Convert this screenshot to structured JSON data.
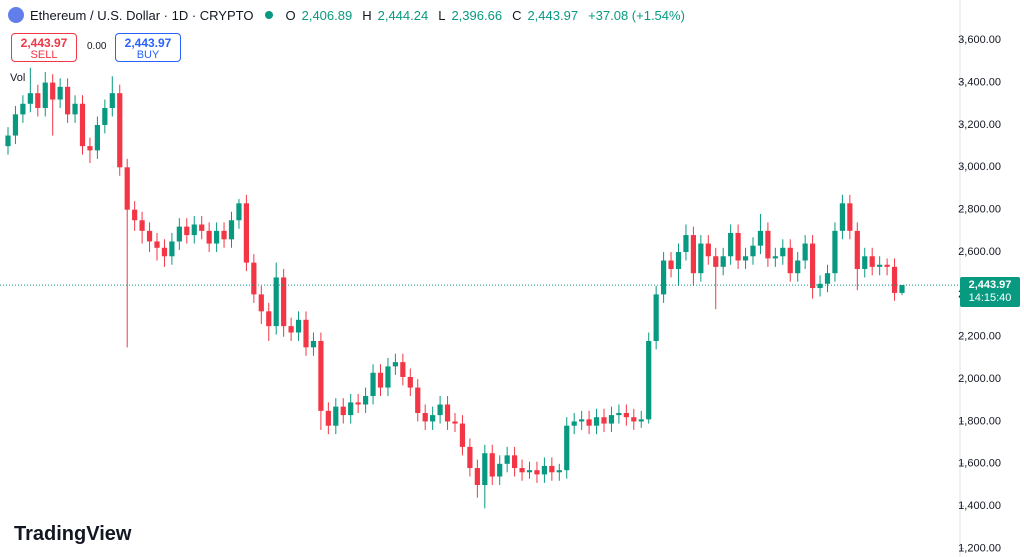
{
  "header": {
    "symbol": "Ethereum / U.S. Dollar · 1D · CRYPTO",
    "o_key": "O",
    "o": "2,406.89",
    "h_key": "H",
    "h": "2,444.24",
    "l_key": "L",
    "l": "2,396.66",
    "c_key": "C",
    "c": "2,443.97",
    "change": "+37.08 (+1.54%)"
  },
  "trade": {
    "sell_price": "2,443.97",
    "sell": "SELL",
    "spread": "0.00",
    "buy_price": "2,443.97",
    "buy": "BUY"
  },
  "volume_label": "Vol",
  "brand": "TradingView",
  "chart_data": {
    "type": "candlestick",
    "up_color": "#089981",
    "down_color": "#f23645",
    "ylim": [
      1160,
      3790
    ],
    "yticks": [
      {
        "value": 1200,
        "label": "1,200.00"
      },
      {
        "value": 1400,
        "label": "1,400.00"
      },
      {
        "value": 1600,
        "label": "1,600.00"
      },
      {
        "value": 1800,
        "label": "1,800.00"
      },
      {
        "value": 2000,
        "label": "2,000.00"
      },
      {
        "value": 2200,
        "label": "2,200.00"
      },
      {
        "value": 2400,
        "label": "2,400.00"
      },
      {
        "value": 2600,
        "label": "2,600.00"
      },
      {
        "value": 2800,
        "label": "2,800.00"
      },
      {
        "value": 3000,
        "label": "3,000.00"
      },
      {
        "value": 3200,
        "label": "3,200.00"
      },
      {
        "value": 3400,
        "label": "3,400.00"
      },
      {
        "value": 3600,
        "label": "3,600.00"
      }
    ],
    "last_price_label": "2,443.97",
    "countdown": "14:15:40",
    "open": [
      3100,
      3150,
      3250,
      3300,
      3350,
      3280,
      3400,
      3320,
      3380,
      3250,
      3300,
      3100,
      3080,
      3200,
      3280,
      3350,
      3000,
      2800,
      2750,
      2700,
      2650,
      2620,
      2580,
      2650,
      2720,
      2680,
      2730,
      2700,
      2640,
      2700,
      2660,
      2750,
      2830,
      2550,
      2400,
      2320,
      2250,
      2480,
      2250,
      2220,
      2280,
      2150,
      2180,
      1850,
      1780,
      1870,
      1830,
      1890,
      1880,
      1920,
      2030,
      1960,
      2060,
      2080,
      2010,
      1960,
      1840,
      1800,
      1830,
      1880,
      1800,
      1790,
      1680,
      1580,
      1500,
      1650,
      1540,
      1600,
      1640,
      1580,
      1560,
      1570,
      1550,
      1590,
      1560,
      1570,
      1780,
      1800,
      1810,
      1780,
      1820,
      1790,
      1830,
      1840,
      1820,
      1800,
      1810,
      2180,
      2400,
      2560,
      2520,
      2600,
      2680,
      2500,
      2640,
      2580,
      2530,
      2580,
      2690,
      2560,
      2580,
      2630,
      2700,
      2570,
      2580,
      2620,
      2500,
      2560,
      2640,
      2430,
      2450,
      2500,
      2700,
      2830,
      2700,
      2520,
      2580,
      2530,
      2540,
      2530,
      2406.89
    ],
    "high": [
      3190,
      3290,
      3340,
      3470,
      3390,
      3450,
      3440,
      3420,
      3420,
      3340,
      3340,
      3140,
      3240,
      3320,
      3430,
      3390,
      3040,
      2840,
      2790,
      2740,
      2690,
      2660,
      2690,
      2760,
      2760,
      2770,
      2770,
      2740,
      2740,
      2740,
      2790,
      2850,
      2870,
      2590,
      2440,
      2360,
      2550,
      2520,
      2290,
      2320,
      2320,
      2220,
      2220,
      1890,
      1910,
      1910,
      1930,
      1930,
      1960,
      2070,
      2070,
      2100,
      2120,
      2120,
      2050,
      2000,
      1880,
      1870,
      1920,
      1920,
      1840,
      1830,
      1720,
      1620,
      1690,
      1690,
      1640,
      1680,
      1680,
      1620,
      1610,
      1610,
      1630,
      1630,
      1600,
      1820,
      1840,
      1850,
      1850,
      1860,
      1860,
      1870,
      1880,
      1880,
      1860,
      1850,
      2220,
      2440,
      2600,
      2600,
      2640,
      2730,
      2720,
      2680,
      2680,
      2620,
      2620,
      2730,
      2730,
      2620,
      2670,
      2780,
      2740,
      2620,
      2660,
      2660,
      2600,
      2680,
      2680,
      2490,
      2540,
      2740,
      2870,
      2870,
      2740,
      2620,
      2620,
      2580,
      2570,
      2570,
      2444.24
    ],
    "low": [
      3060,
      3110,
      3210,
      3260,
      3240,
      3240,
      3150,
      3280,
      3210,
      3210,
      3060,
      3020,
      3040,
      3160,
      3240,
      2960,
      2150,
      2700,
      2640,
      2600,
      2560,
      2530,
      2540,
      2610,
      2640,
      2640,
      2660,
      2600,
      2600,
      2620,
      2620,
      2710,
      2510,
      2360,
      2260,
      2180,
      2210,
      2200,
      2180,
      2180,
      2110,
      2110,
      1760,
      1740,
      1740,
      1790,
      1790,
      1840,
      1840,
      1880,
      1920,
      1920,
      2020,
      1970,
      1920,
      1800,
      1760,
      1760,
      1790,
      1760,
      1750,
      1640,
      1540,
      1440,
      1390,
      1500,
      1500,
      1560,
      1540,
      1520,
      1530,
      1510,
      1510,
      1520,
      1520,
      1530,
      1740,
      1760,
      1740,
      1740,
      1750,
      1750,
      1790,
      1780,
      1760,
      1770,
      1790,
      2140,
      2360,
      2480,
      2440,
      2560,
      2440,
      2460,
      2540,
      2330,
      2490,
      2540,
      2520,
      2520,
      2540,
      2590,
      2530,
      2530,
      2540,
      2460,
      2460,
      2520,
      2380,
      2390,
      2410,
      2460,
      2660,
      2660,
      2420,
      2480,
      2490,
      2490,
      2490,
      2370,
      2396.66
    ],
    "close": [
      3150,
      3250,
      3300,
      3350,
      3280,
      3400,
      3320,
      3380,
      3250,
      3300,
      3100,
      3080,
      3200,
      3280,
      3350,
      3000,
      2800,
      2750,
      2700,
      2650,
      2620,
      2580,
      2650,
      2720,
      2680,
      2730,
      2700,
      2640,
      2700,
      2660,
      2750,
      2830,
      2550,
      2400,
      2320,
      2250,
      2480,
      2250,
      2220,
      2280,
      2150,
      2180,
      1850,
      1780,
      1870,
      1830,
      1890,
      1880,
      1920,
      2030,
      1960,
      2060,
      2080,
      2010,
      1960,
      1840,
      1800,
      1830,
      1880,
      1800,
      1790,
      1680,
      1580,
      1500,
      1650,
      1540,
      1600,
      1640,
      1580,
      1560,
      1570,
      1550,
      1590,
      1560,
      1570,
      1780,
      1800,
      1810,
      1780,
      1820,
      1790,
      1830,
      1840,
      1820,
      1800,
      1810,
      2180,
      2400,
      2560,
      2520,
      2600,
      2680,
      2500,
      2640,
      2580,
      2530,
      2580,
      2690,
      2560,
      2580,
      2630,
      2700,
      2570,
      2580,
      2620,
      2500,
      2560,
      2640,
      2430,
      2450,
      2500,
      2700,
      2830,
      2700,
      2520,
      2580,
      2530,
      2540,
      2530,
      2407,
      2443.97
    ]
  }
}
